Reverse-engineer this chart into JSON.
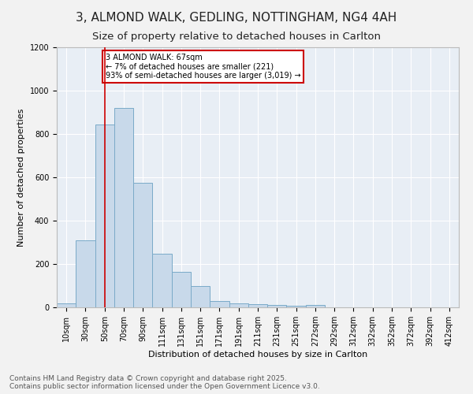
{
  "title_line1": "3, ALMOND WALK, GEDLING, NOTTINGHAM, NG4 4AH",
  "title_line2": "Size of property relative to detached houses in Carlton",
  "xlabel": "Distribution of detached houses by size in Carlton",
  "ylabel": "Number of detached properties",
  "bar_color": "#c8d9ea",
  "bar_edge_color": "#7aaac8",
  "bg_color": "#e8eef5",
  "grid_color": "#ffffff",
  "annotation_box_color": "#cc0000",
  "vline_color": "#cc0000",
  "vline_x": 2,
  "annotation_text": "3 ALMOND WALK: 67sqm\n← 7% of detached houses are smaller (221)\n93% of semi-detached houses are larger (3,019) →",
  "footer_text": "Contains HM Land Registry data © Crown copyright and database right 2025.\nContains public sector information licensed under the Open Government Licence v3.0.",
  "categories": [
    "10sqm",
    "30sqm",
    "50sqm",
    "70sqm",
    "90sqm",
    "111sqm",
    "131sqm",
    "151sqm",
    "171sqm",
    "191sqm",
    "211sqm",
    "231sqm",
    "251sqm",
    "272sqm",
    "292sqm",
    "312sqm",
    "332sqm",
    "352sqm",
    "372sqm",
    "392sqm",
    "412sqm"
  ],
  "values": [
    20,
    310,
    845,
    920,
    575,
    248,
    163,
    100,
    30,
    18,
    15,
    12,
    8,
    10,
    0,
    0,
    0,
    0,
    0,
    0,
    0
  ],
  "ylim": [
    0,
    1200
  ],
  "yticks": [
    0,
    200,
    400,
    600,
    800,
    1000,
    1200
  ],
  "title_fontsize": 11,
  "subtitle_fontsize": 9.5,
  "axis_label_fontsize": 8,
  "tick_fontsize": 7,
  "footer_fontsize": 6.5,
  "annotation_fontsize": 7
}
